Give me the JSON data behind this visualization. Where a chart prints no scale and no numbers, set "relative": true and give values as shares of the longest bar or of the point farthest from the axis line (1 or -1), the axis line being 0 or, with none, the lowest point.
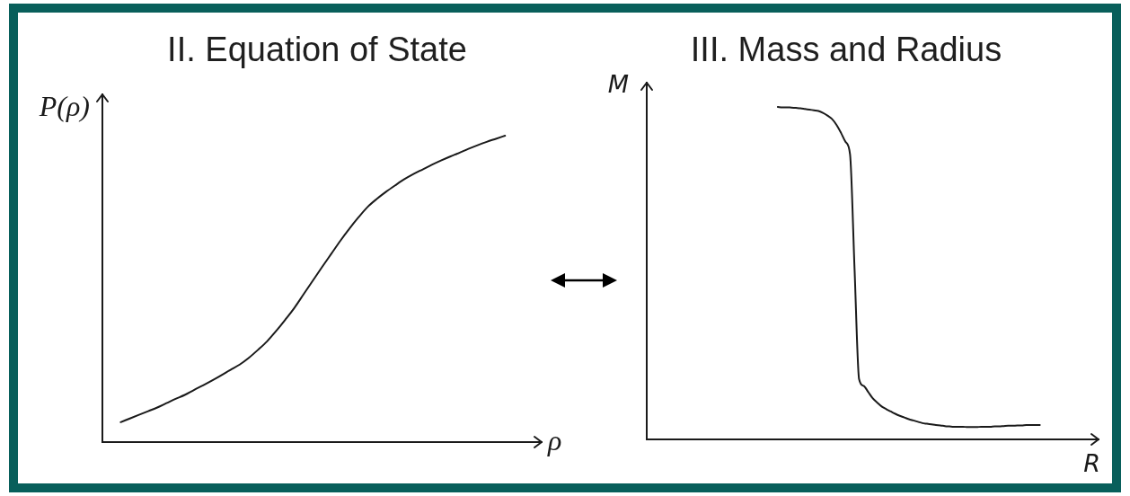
{
  "chart_data": [
    {
      "type": "line",
      "title": "II. Equation of State",
      "xlabel": "ρ",
      "ylabel": "P(ρ)",
      "relative": true,
      "color": "#1a1a1a",
      "categories": [
        null,
        null,
        null,
        null,
        null,
        null,
        null,
        null,
        null,
        null,
        null,
        null,
        null,
        null,
        null,
        null,
        null,
        null,
        null,
        null,
        null,
        null,
        null,
        null,
        null,
        null,
        null,
        null,
        null,
        null,
        null,
        null,
        null,
        null,
        null,
        null,
        null,
        null,
        null,
        null,
        null,
        null,
        null,
        null,
        null,
        null,
        null,
        null,
        null
      ],
      "values": [
        null,
        null,
        0.065,
        0.077,
        0.089,
        0.101,
        0.113,
        0.127,
        0.141,
        0.154,
        0.17,
        0.185,
        0.201,
        0.218,
        0.236,
        0.253,
        0.275,
        0.301,
        0.329,
        0.363,
        0.4,
        0.439,
        0.483,
        0.527,
        0.571,
        0.614,
        0.657,
        0.697,
        0.734,
        0.768,
        0.794,
        0.817,
        0.838,
        0.858,
        0.875,
        0.89,
        0.905,
        0.919,
        0.932,
        0.944,
        0.957,
        0.969,
        0.98,
        0.99,
        1.0,
        null,
        null,
        null,
        null
      ]
    },
    {
      "type": "line",
      "title": "III. Mass and Radius",
      "xlabel": "R",
      "ylabel": "M",
      "relative": true,
      "color": "#1a1a1a",
      "categories": [
        null,
        null,
        null,
        null,
        null,
        null,
        null,
        null,
        null,
        null,
        null,
        null,
        null,
        null,
        null,
        null,
        null,
        null,
        null,
        null,
        null,
        null,
        null,
        null,
        null,
        null,
        null,
        null,
        null,
        null,
        null,
        null,
        null,
        null,
        null,
        null,
        null,
        null,
        null,
        null,
        null,
        null,
        null,
        null,
        null,
        null,
        null,
        null,
        null,
        null,
        null,
        null,
        null,
        null,
        null,
        null,
        null,
        null,
        null,
        null,
        null,
        null,
        null,
        null,
        null,
        null,
        null,
        null,
        null,
        null,
        null,
        null,
        null,
        null,
        null,
        null,
        null,
        null,
        null,
        null,
        null,
        null,
        null,
        null,
        null,
        null,
        null,
        null,
        null,
        null,
        null,
        null,
        null,
        null,
        null,
        null,
        null,
        null,
        null,
        null,
        null
      ],
      "values": [
        null,
        null,
        null,
        null,
        null,
        null,
        null,
        null,
        null,
        null,
        null,
        null,
        null,
        null,
        null,
        null,
        null,
        null,
        null,
        null,
        null,
        null,
        null,
        null,
        null,
        null,
        null,
        null,
        null,
        1.0,
        0.999,
        0.999,
        0.998,
        0.997,
        0.996,
        0.994,
        0.992,
        0.99,
        0.988,
        0.982,
        0.974,
        0.964,
        0.946,
        0.922,
        0.895,
        0.857,
        0.511,
        0.181,
        0.161,
        0.143,
        0.124,
        0.111,
        0.099,
        0.091,
        0.084,
        0.077,
        0.071,
        0.066,
        0.061,
        0.057,
        0.053,
        0.049,
        0.047,
        0.045,
        0.043,
        0.042,
        0.04,
        0.039,
        0.038,
        0.038,
        0.038,
        0.037,
        0.037,
        0.037,
        0.038,
        0.038,
        0.038,
        0.039,
        0.039,
        0.04,
        0.041,
        0.041,
        0.042,
        0.042,
        0.043,
        0.043,
        0.043,
        0.043,
        null,
        null,
        null,
        null,
        null,
        null,
        null,
        null,
        null,
        null,
        null,
        null,
        null
      ]
    }
  ]
}
